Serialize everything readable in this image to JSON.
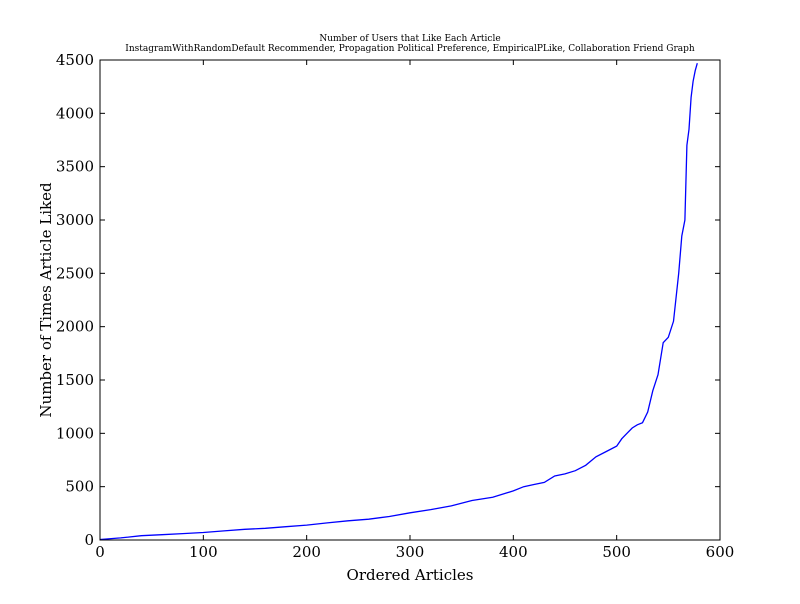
{
  "chart_data": {
    "type": "line",
    "title": "Number of Users that Like Each Article",
    "subtitle": "InstagramWithRandomDefault Recommender, Propagation Political Preference,  EmpiricalPLike, Collaboration Friend Graph",
    "xlabel": "Ordered Articles",
    "ylabel": "Number of Times Article Liked",
    "xlim": [
      0,
      600
    ],
    "ylim": [
      0,
      4500
    ],
    "xticks": [
      0,
      100,
      200,
      300,
      400,
      500,
      600
    ],
    "yticks": [
      0,
      500,
      1000,
      1500,
      2000,
      2500,
      3000,
      3500,
      4000,
      4500
    ],
    "grid": false,
    "legend": "none",
    "colors": {
      "series": "#0000ff",
      "axes": "#000000",
      "background": "#ffffff"
    },
    "series": [
      {
        "x": [
          0,
          20,
          40,
          60,
          80,
          100,
          120,
          140,
          160,
          180,
          200,
          220,
          240,
          260,
          280,
          300,
          320,
          340,
          360,
          380,
          400,
          410,
          420,
          430,
          440,
          450,
          460,
          470,
          480,
          490,
          500,
          505,
          510,
          515,
          520,
          525,
          530,
          535,
          540,
          545,
          550,
          555,
          560,
          563,
          566,
          568,
          570,
          572,
          574,
          576,
          578
        ],
        "y": [
          5,
          20,
          40,
          50,
          60,
          70,
          85,
          100,
          110,
          125,
          140,
          160,
          180,
          195,
          220,
          255,
          285,
          320,
          370,
          400,
          460,
          500,
          520,
          540,
          600,
          620,
          650,
          700,
          780,
          830,
          880,
          950,
          1000,
          1050,
          1080,
          1100,
          1200,
          1400,
          1550,
          1850,
          1900,
          2050,
          2500,
          2850,
          3000,
          3700,
          3850,
          4150,
          4300,
          4400,
          4470
        ]
      }
    ]
  }
}
